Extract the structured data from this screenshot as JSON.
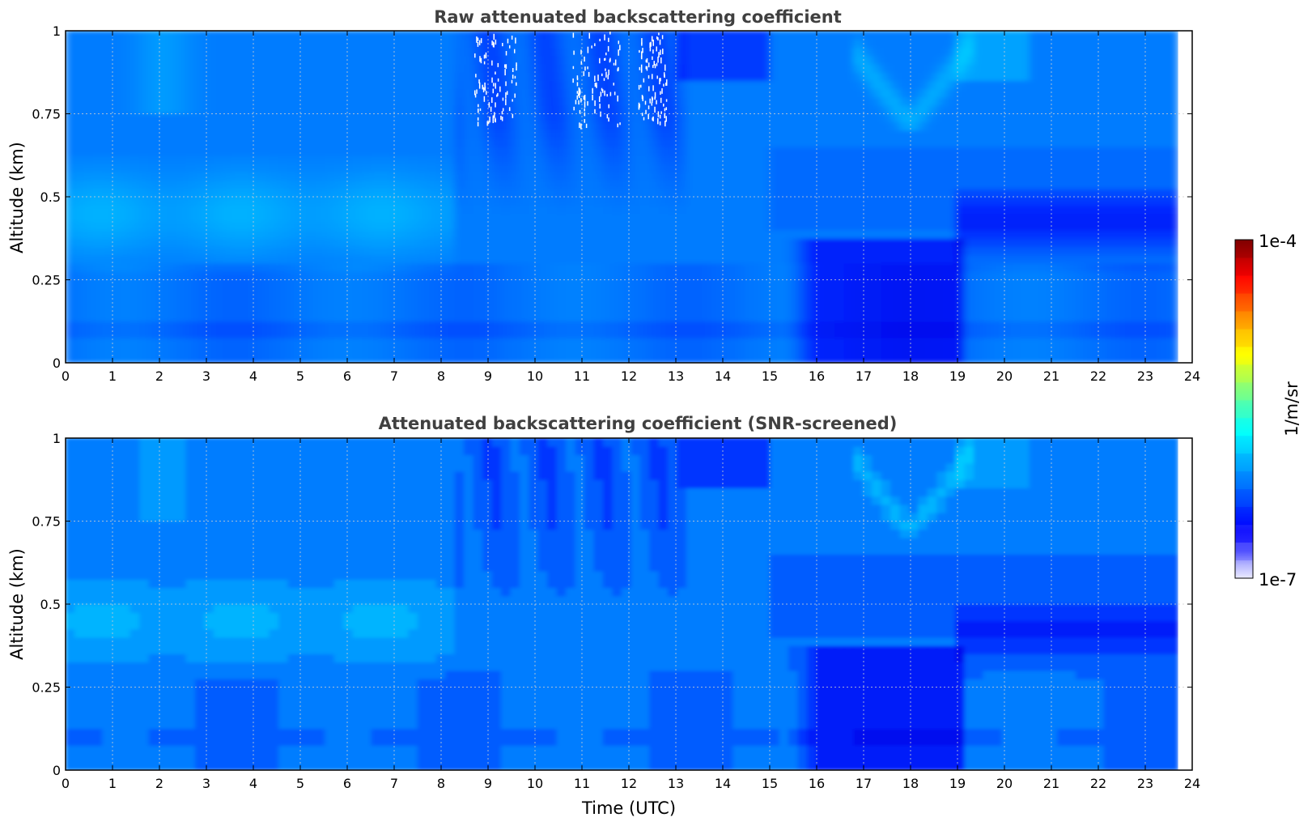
{
  "chart_data": [
    {
      "type": "heatmap",
      "title": "Raw attenuated backscattering coefficient",
      "xlabel": "",
      "ylabel": "Altitude (km)",
      "xlim": [
        0,
        24
      ],
      "ylim": [
        0,
        1
      ],
      "x_ticks": [
        "0",
        "1",
        "2",
        "3",
        "4",
        "5",
        "6",
        "7",
        "8",
        "9",
        "10",
        "11",
        "12",
        "13",
        "14",
        "15",
        "16",
        "17",
        "18",
        "19",
        "20",
        "21",
        "22",
        "23",
        "24"
      ],
      "y_ticks": [
        "0",
        "0.25",
        "0.5",
        "0.75",
        "1"
      ],
      "data_x_end": 23.7,
      "grid": true,
      "colormap": "jet-like",
      "features": [
        {
          "time_range": [
            0,
            8
          ],
          "altitude_range": [
            0.3,
            0.6
          ],
          "level": "light blue / cyan"
        },
        {
          "time_range": [
            8.3,
            13
          ],
          "altitude_range": [
            0.55,
            1.0
          ],
          "level": "dark blue streaks with white gaps"
        },
        {
          "time_range": [
            15.5,
            19
          ],
          "altitude_range": [
            0,
            0.35
          ],
          "level": "dark blue"
        },
        {
          "time_range": [
            19,
            23.7
          ],
          "altitude_range": [
            0.3,
            0.5
          ],
          "level": "dark blue layer"
        },
        {
          "time_range": [
            17,
            19
          ],
          "altitude_range": [
            0.7,
            1.0
          ],
          "level": "cyan V-shaped plume"
        }
      ]
    },
    {
      "type": "heatmap",
      "title": "Attenuated backscattering coefficient (SNR-screened)",
      "xlabel": "Time (UTC)",
      "ylabel": "Altitude (km)",
      "xlim": [
        0,
        24
      ],
      "ylim": [
        0,
        1
      ],
      "x_ticks": [
        "0",
        "1",
        "2",
        "3",
        "4",
        "5",
        "6",
        "7",
        "8",
        "9",
        "10",
        "11",
        "12",
        "13",
        "14",
        "15",
        "16",
        "17",
        "18",
        "19",
        "20",
        "21",
        "22",
        "23",
        "24"
      ],
      "y_ticks": [
        "0",
        "0.25",
        "0.5",
        "0.75",
        "1"
      ],
      "data_x_end": 23.7,
      "grid": true,
      "colormap": "jet-like",
      "features": [
        {
          "time_range": [
            0,
            8
          ],
          "altitude_range": [
            0.3,
            0.6
          ],
          "level": "light blue / cyan"
        },
        {
          "time_range": [
            8.3,
            13
          ],
          "altitude_range": [
            0.55,
            1.0
          ],
          "level": "dark blue streaks"
        },
        {
          "time_range": [
            15.5,
            19
          ],
          "altitude_range": [
            0,
            0.35
          ],
          "level": "dark blue"
        },
        {
          "time_range": [
            19,
            23.7
          ],
          "altitude_range": [
            0.3,
            0.5
          ],
          "level": "dark blue layer"
        },
        {
          "time_range": [
            17,
            19
          ],
          "altitude_range": [
            0.7,
            1.0
          ],
          "level": "cyan V-shaped plume"
        }
      ]
    }
  ],
  "colorbar": {
    "label": "1/m/sr",
    "max_label": "1e-4",
    "min_label": "1e-7",
    "scale": "log",
    "range": [
      1e-07,
      0.0001
    ],
    "colors": [
      "#e8e8ff",
      "#a0a0ff",
      "#3c3cff",
      "#0000ff",
      "#0032ff",
      "#0064ff",
      "#0096ff",
      "#00c8ff",
      "#00ffff",
      "#40ffbf",
      "#80ff80",
      "#bfff40",
      "#ffff00",
      "#ffbf00",
      "#ff8000",
      "#ff4000",
      "#ff0000",
      "#bf0000",
      "#800000"
    ]
  }
}
